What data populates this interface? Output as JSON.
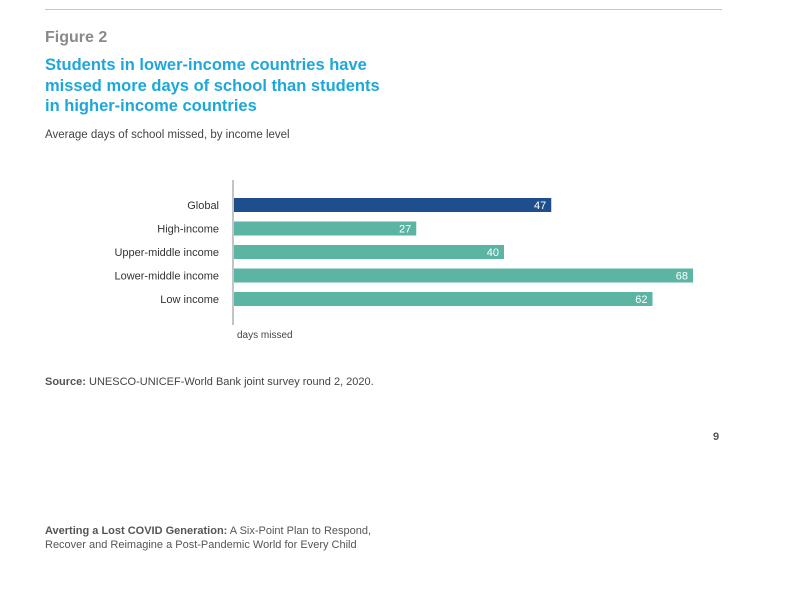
{
  "figure_label": "Figure 2",
  "headline": "Students in lower-income countries have missed more days of school than students in higher-income countries",
  "subtitle": "Average days of school missed, by income level",
  "source": {
    "label": "Source:",
    "text": "UNESCO-UNICEF-World Bank joint survey round 2, 2020."
  },
  "page_number": "9",
  "footer": {
    "title": "Averting a Lost COVID Generation:",
    "line1_rest": "A Six-Point Plan to Respond,",
    "line2": "Recover and Reimagine a Post-Pandemic World for Every Child"
  },
  "colors": {
    "headline": "#1ea7da",
    "global_bar": "#1f4e8c",
    "income_bar": "#5bb5a2"
  },
  "chart_data": {
    "type": "bar",
    "orientation": "horizontal",
    "categories": [
      "Global",
      "High-income",
      "Upper-middle income",
      "Lower-middle income",
      "Low income"
    ],
    "values": [
      47,
      27,
      40,
      68,
      62
    ],
    "xlabel": "days missed",
    "xlim": [
      0,
      70
    ],
    "bar_colors": [
      "#1f4e8c",
      "#5bb5a2",
      "#5bb5a2",
      "#5bb5a2",
      "#5bb5a2"
    ],
    "data_labels": true,
    "grid": false
  }
}
